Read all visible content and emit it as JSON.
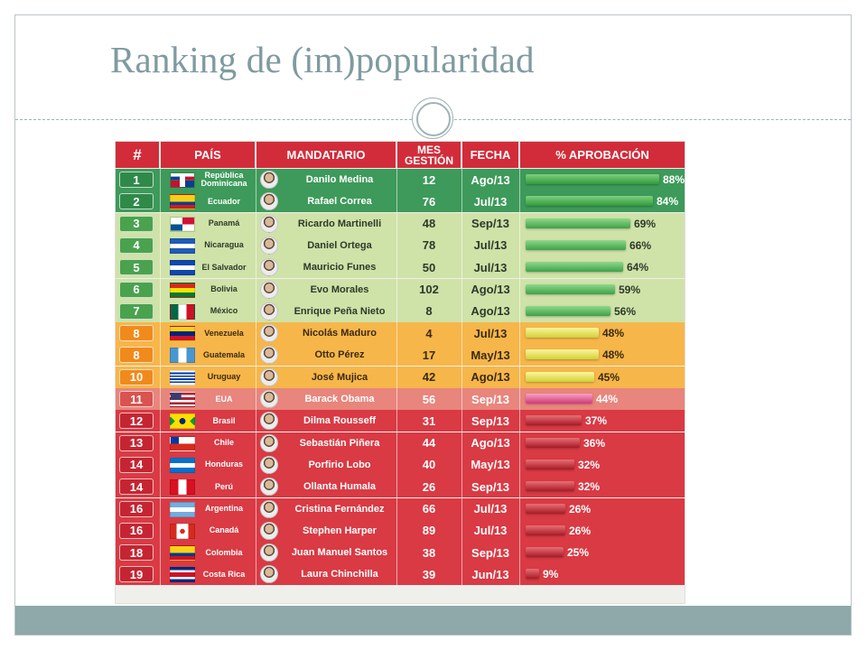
{
  "slide": {
    "title": "Ranking de (im)popularidad"
  },
  "table": {
    "headers": {
      "rank": "#",
      "country": "PAÍS",
      "leader": "MANDATARIO",
      "months": "MES GESTIÓN",
      "date": "FECHA",
      "approval": "% APROBACIÓN"
    },
    "colors": {
      "header": "#d22c3a",
      "dark_green": "#2e8b4e",
      "light_green": "#cfe2a8",
      "orange": "#f6b64a",
      "salmon": "#e8857c",
      "red": "#d93a44"
    },
    "rows": [
      {
        "rank": "1",
        "country": "República Dominicana",
        "leader": "Danilo Medina",
        "months": "12",
        "date": "Ago/13",
        "approval_value": 88,
        "approval": "88%",
        "band": "dark_green",
        "flag": "dominican-republic-flag"
      },
      {
        "rank": "2",
        "country": "Ecuador",
        "leader": "Rafael Correa",
        "months": "76",
        "date": "Jul/13",
        "approval_value": 84,
        "approval": "84%",
        "band": "dark_green",
        "flag": "ecuador-flag"
      },
      {
        "rank": "3",
        "country": "Panamá",
        "leader": "Ricardo Martinelli",
        "months": "48",
        "date": "Sep/13",
        "approval_value": 69,
        "approval": "69%",
        "band": "light_green",
        "flag": "panama-flag"
      },
      {
        "rank": "4",
        "country": "Nicaragua",
        "leader": "Daniel Ortega",
        "months": "78",
        "date": "Jul/13",
        "approval_value": 66,
        "approval": "66%",
        "band": "light_green",
        "flag": "nicaragua-flag"
      },
      {
        "rank": "5",
        "country": "El Salvador",
        "leader": "Mauricio Funes",
        "months": "50",
        "date": "Jul/13",
        "approval_value": 64,
        "approval": "64%",
        "band": "light_green",
        "flag": "el-salvador-flag"
      },
      {
        "rank": "6",
        "country": "Bolivia",
        "leader": "Evo Morales",
        "months": "102",
        "date": "Ago/13",
        "approval_value": 59,
        "approval": "59%",
        "band": "light_green",
        "flag": "bolivia-flag"
      },
      {
        "rank": "7",
        "country": "México",
        "leader": "Enrique Peña Nieto",
        "months": "8",
        "date": "Ago/13",
        "approval_value": 56,
        "approval": "56%",
        "band": "light_green",
        "flag": "mexico-flag"
      },
      {
        "rank": "8",
        "country": "Venezuela",
        "leader": "Nicolás Maduro",
        "months": "4",
        "date": "Jul/13",
        "approval_value": 48,
        "approval": "48%",
        "band": "orange",
        "flag": "venezuela-flag"
      },
      {
        "rank": "8",
        "country": "Guatemala",
        "leader": "Otto Pérez",
        "months": "17",
        "date": "May/13",
        "approval_value": 48,
        "approval": "48%",
        "band": "orange",
        "flag": "guatemala-flag"
      },
      {
        "rank": "10",
        "country": "Uruguay",
        "leader": "José Mujica",
        "months": "42",
        "date": "Ago/13",
        "approval_value": 45,
        "approval": "45%",
        "band": "orange",
        "flag": "uruguay-flag"
      },
      {
        "rank": "11",
        "country": "EUA",
        "leader": "Barack Obama",
        "months": "56",
        "date": "Sep/13",
        "approval_value": 44,
        "approval": "44%",
        "band": "salmon",
        "flag": "usa-flag"
      },
      {
        "rank": "12",
        "country": "Brasil",
        "leader": "Dilma Rousseff",
        "months": "31",
        "date": "Sep/13",
        "approval_value": 37,
        "approval": "37%",
        "band": "red",
        "flag": "brazil-flag"
      },
      {
        "rank": "13",
        "country": "Chile",
        "leader": "Sebastián Piñera",
        "months": "44",
        "date": "Ago/13",
        "approval_value": 36,
        "approval": "36%",
        "band": "red",
        "flag": "chile-flag"
      },
      {
        "rank": "14",
        "country": "Honduras",
        "leader": "Porfirio Lobo",
        "months": "40",
        "date": "May/13",
        "approval_value": 32,
        "approval": "32%",
        "band": "red",
        "flag": "honduras-flag"
      },
      {
        "rank": "14",
        "country": "Perú",
        "leader": "Ollanta Humala",
        "months": "26",
        "date": "Sep/13",
        "approval_value": 32,
        "approval": "32%",
        "band": "red",
        "flag": "peru-flag"
      },
      {
        "rank": "16",
        "country": "Argentina",
        "leader": "Cristina Fernández",
        "months": "66",
        "date": "Jul/13",
        "approval_value": 26,
        "approval": "26%",
        "band": "red",
        "flag": "argentina-flag"
      },
      {
        "rank": "16",
        "country": "Canadá",
        "leader": "Stephen Harper",
        "months": "89",
        "date": "Jul/13",
        "approval_value": 26,
        "approval": "26%",
        "band": "red",
        "flag": "canada-flag"
      },
      {
        "rank": "18",
        "country": "Colombia",
        "leader": "Juan Manuel Santos",
        "months": "38",
        "date": "Sep/13",
        "approval_value": 25,
        "approval": "25%",
        "band": "red",
        "flag": "colombia-flag"
      },
      {
        "rank": "19",
        "country": "Costa Rica",
        "leader": "Laura Chinchilla",
        "months": "39",
        "date": "Jun/13",
        "approval_value": 9,
        "approval": "9%",
        "band": "red",
        "flag": "costa-rica-flag"
      }
    ]
  }
}
